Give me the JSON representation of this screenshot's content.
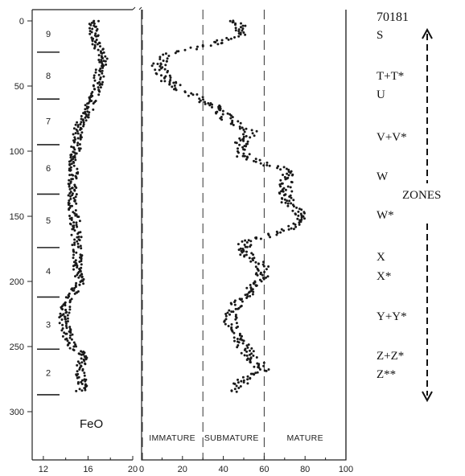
{
  "chart_data": {
    "type": "scatter",
    "core_id": "70181",
    "y_axis": {
      "range": [
        0,
        310
      ],
      "ticks": [
        0,
        50,
        100,
        150,
        200,
        250,
        300
      ]
    },
    "left_panel": {
      "label": "FeO",
      "x_range": [
        11,
        20
      ],
      "x_ticks": [
        12,
        16,
        20
      ],
      "zone_labels": [
        {
          "label": "9",
          "depth": 10
        },
        {
          "label": "8",
          "depth": 42
        },
        {
          "label": "7",
          "depth": 77
        },
        {
          "label": "6",
          "depth": 113
        },
        {
          "label": "5",
          "depth": 153
        },
        {
          "label": "4",
          "depth": 192
        },
        {
          "label": "3",
          "depth": 233
        },
        {
          "label": "2",
          "depth": 270
        }
      ],
      "zone_boundaries": [
        24,
        60,
        95,
        133,
        174,
        212,
        252,
        287
      ],
      "profile": [
        {
          "depth": 0,
          "value": 16.5
        },
        {
          "depth": 10,
          "value": 16.6
        },
        {
          "depth": 20,
          "value": 16.9
        },
        {
          "depth": 30,
          "value": 17.4
        },
        {
          "depth": 40,
          "value": 17.0
        },
        {
          "depth": 50,
          "value": 16.8
        },
        {
          "depth": 60,
          "value": 16.4
        },
        {
          "depth": 70,
          "value": 16.0
        },
        {
          "depth": 80,
          "value": 15.2
        },
        {
          "depth": 90,
          "value": 15.0
        },
        {
          "depth": 100,
          "value": 14.9
        },
        {
          "depth": 110,
          "value": 14.7
        },
        {
          "depth": 120,
          "value": 14.6
        },
        {
          "depth": 130,
          "value": 14.7
        },
        {
          "depth": 140,
          "value": 14.6
        },
        {
          "depth": 150,
          "value": 14.8
        },
        {
          "depth": 160,
          "value": 14.9
        },
        {
          "depth": 170,
          "value": 15.0
        },
        {
          "depth": 180,
          "value": 15.1
        },
        {
          "depth": 190,
          "value": 15.0
        },
        {
          "depth": 200,
          "value": 15.3
        },
        {
          "depth": 210,
          "value": 14.6
        },
        {
          "depth": 220,
          "value": 14.0
        },
        {
          "depth": 230,
          "value": 13.8
        },
        {
          "depth": 240,
          "value": 14.1
        },
        {
          "depth": 250,
          "value": 14.6
        },
        {
          "depth": 255,
          "value": 15.6
        },
        {
          "depth": 260,
          "value": 15.4
        },
        {
          "depth": 270,
          "value": 15.3
        },
        {
          "depth": 280,
          "value": 15.5
        },
        {
          "depth": 285,
          "value": 15.3
        }
      ]
    },
    "right_panel": {
      "x_range": [
        0,
        100
      ],
      "x_ticks": [
        0,
        20,
        40,
        60,
        80,
        100
      ],
      "dividers": [
        30,
        60
      ],
      "classes": [
        {
          "label": "IMMATURE",
          "center": 15
        },
        {
          "label": "SUBMATURE",
          "center": 44
        },
        {
          "label": "MATURE",
          "center": 80
        }
      ],
      "profile": [
        {
          "depth": 0,
          "value": 43
        },
        {
          "depth": 5,
          "value": 49
        },
        {
          "depth": 12,
          "value": 47
        },
        {
          "depth": 20,
          "value": 30
        },
        {
          "depth": 25,
          "value": 12
        },
        {
          "depth": 35,
          "value": 8
        },
        {
          "depth": 45,
          "value": 12
        },
        {
          "depth": 55,
          "value": 22
        },
        {
          "depth": 65,
          "value": 35
        },
        {
          "depth": 75,
          "value": 42
        },
        {
          "depth": 85,
          "value": 54
        },
        {
          "depth": 95,
          "value": 48
        },
        {
          "depth": 105,
          "value": 50
        },
        {
          "depth": 115,
          "value": 72
        },
        {
          "depth": 130,
          "value": 70
        },
        {
          "depth": 140,
          "value": 72
        },
        {
          "depth": 150,
          "value": 78
        },
        {
          "depth": 160,
          "value": 72
        },
        {
          "depth": 170,
          "value": 50
        },
        {
          "depth": 180,
          "value": 52
        },
        {
          "depth": 190,
          "value": 60
        },
        {
          "depth": 200,
          "value": 58
        },
        {
          "depth": 210,
          "value": 52
        },
        {
          "depth": 220,
          "value": 45
        },
        {
          "depth": 230,
          "value": 43
        },
        {
          "depth": 240,
          "value": 45
        },
        {
          "depth": 250,
          "value": 50
        },
        {
          "depth": 260,
          "value": 55
        },
        {
          "depth": 268,
          "value": 60
        },
        {
          "depth": 275,
          "value": 50
        },
        {
          "depth": 285,
          "value": 45
        }
      ]
    },
    "zone_sequence": [
      "S",
      "T+T*",
      "U",
      "V+V*",
      "W",
      "W*",
      "X",
      "X*",
      "Y+Y*",
      "Z+Z*",
      "Z**"
    ],
    "zones_label": "ZONES"
  }
}
